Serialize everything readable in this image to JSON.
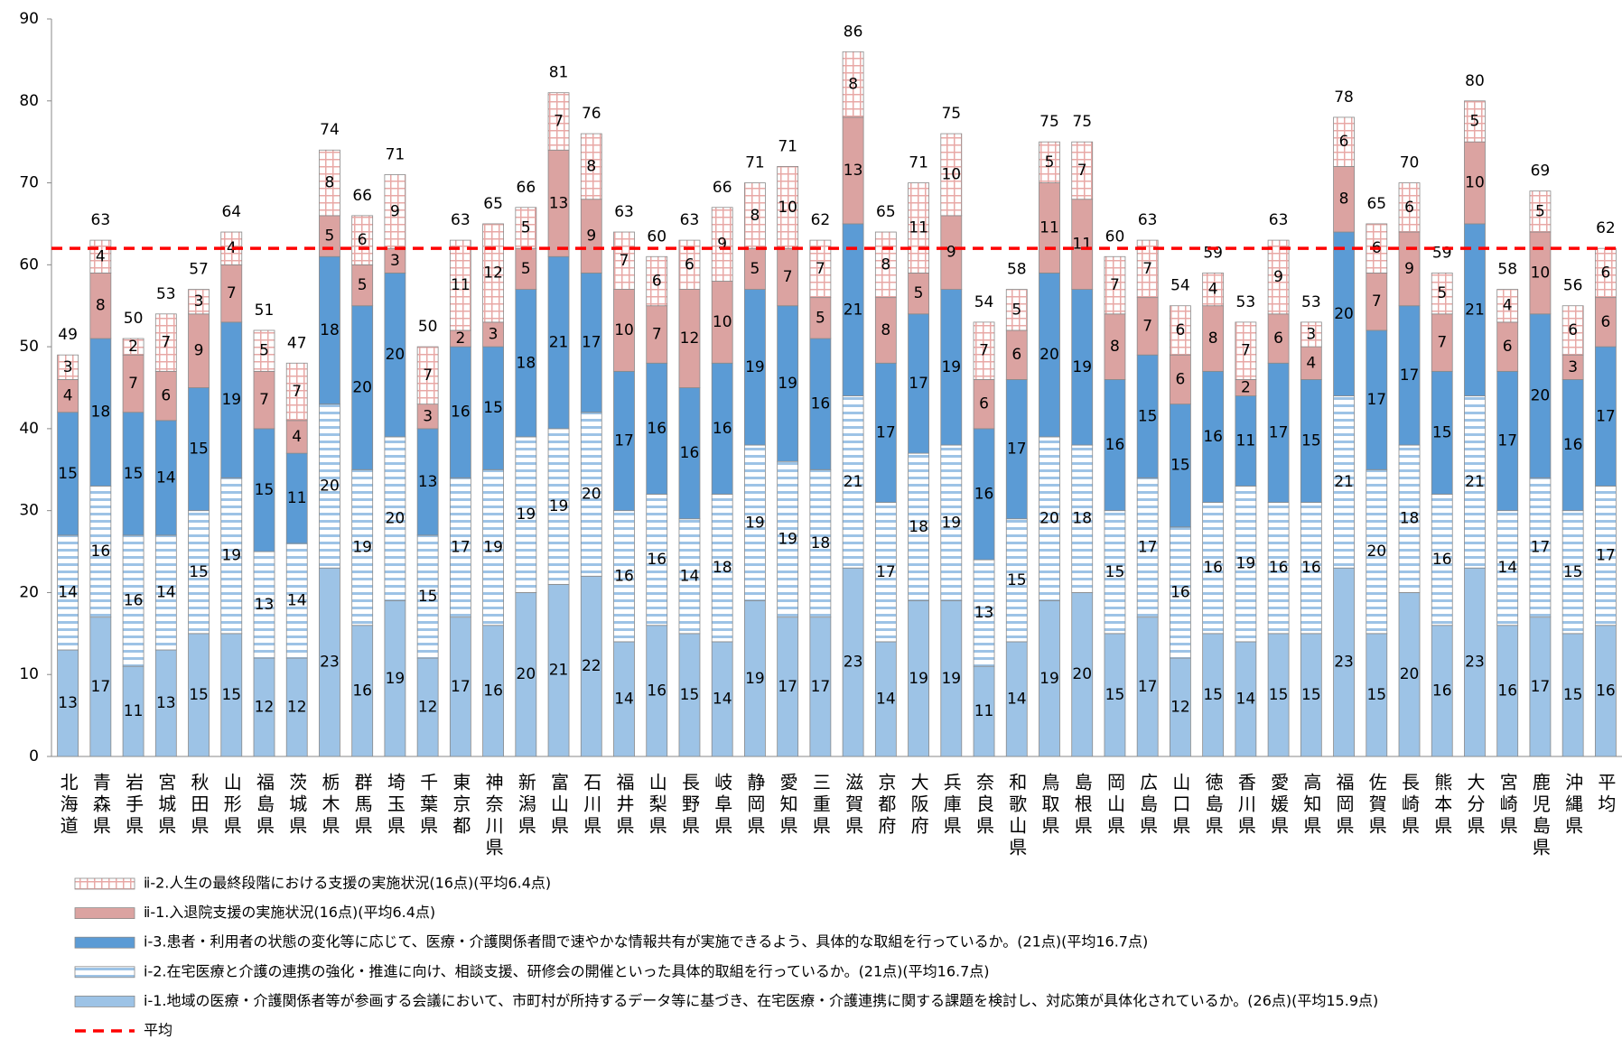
{
  "chart_data": {
    "type": "stacked_bar",
    "categories": [
      "北海道",
      "青森県",
      "岩手県",
      "宮城県",
      "秋田県",
      "山形県",
      "福島県",
      "茨城県",
      "栃木県",
      "群馬県",
      "埼玉県",
      "千葉県",
      "東京都",
      "神奈川県",
      "新潟県",
      "富山県",
      "石川県",
      "福井県",
      "山梨県",
      "長野県",
      "岐阜県",
      "静岡県",
      "愛知県",
      "三重県",
      "滋賀県",
      "京都府",
      "大阪府",
      "兵庫県",
      "奈良県",
      "和歌山県",
      "鳥取県",
      "島根県",
      "岡山県",
      "広島県",
      "山口県",
      "徳島県",
      "香川県",
      "愛媛県",
      "高知県",
      "福岡県",
      "佐賀県",
      "長崎県",
      "熊本県",
      "大分県",
      "宮崎県",
      "鹿児島県",
      "沖縄県",
      "平均"
    ],
    "series": [
      {
        "name": "ⅰ-1.地域の医療・介護関係者等が参画する会議において、市町村が所持するデータ等に基づき、在宅医療・介護連携に関する課題を検討し、対応策が具体化されているか。(26点)(平均15.9点)",
        "color": "#9dc3e6",
        "pattern": "solid",
        "values": [
          13,
          17,
          11,
          13,
          15,
          15,
          12,
          12,
          23,
          16,
          19,
          12,
          17,
          16,
          20,
          21,
          22,
          14,
          16,
          15,
          14,
          19,
          17,
          17,
          23,
          14,
          19,
          19,
          11,
          14,
          19,
          20,
          15,
          17,
          12,
          15,
          14,
          15,
          15,
          23,
          15,
          20,
          16,
          23,
          16,
          17,
          15,
          16
        ]
      },
      {
        "name": "ⅰ-2.在宅医療と介護の連携の強化・推進に向け、相談支援、研修会の開催といった具体的取組を行っているか。(21点)(平均16.7点)",
        "color": "#9dc3e6",
        "pattern": "hstripe",
        "values": [
          14,
          16,
          16,
          14,
          15,
          19,
          13,
          14,
          20,
          19,
          20,
          15,
          17,
          19,
          19,
          19,
          20,
          16,
          16,
          14,
          18,
          19,
          19,
          18,
          21,
          17,
          18,
          19,
          13,
          15,
          20,
          18,
          15,
          17,
          16,
          16,
          19,
          16,
          16,
          21,
          20,
          18,
          16,
          21,
          14,
          17,
          15,
          17
        ]
      },
      {
        "name": "ⅰ-3.患者・利用者の状態の変化等に応じて、医療・介護関係者間で速やかな情報共有が実施できるよう、具体的な取組を行っているか。(21点)(平均16.7点)",
        "color": "#5b9bd5",
        "pattern": "solid",
        "values": [
          15,
          18,
          15,
          14,
          15,
          19,
          15,
          11,
          18,
          20,
          20,
          13,
          16,
          15,
          18,
          21,
          17,
          17,
          16,
          16,
          16,
          19,
          19,
          16,
          21,
          17,
          17,
          19,
          16,
          17,
          20,
          19,
          16,
          15,
          15,
          16,
          11,
          17,
          15,
          20,
          17,
          17,
          15,
          21,
          17,
          20,
          16,
          17
        ]
      },
      {
        "name": "ⅱ-1.入退院支援の実施状況(16点)(平均6.4点)",
        "color": "#dba3a1",
        "pattern": "solid",
        "values": [
          4,
          8,
          7,
          6,
          9,
          7,
          7,
          4,
          5,
          5,
          3,
          3,
          2,
          3,
          5,
          13,
          9,
          10,
          7,
          12,
          10,
          5,
          7,
          5,
          13,
          8,
          5,
          9,
          6,
          6,
          11,
          11,
          8,
          7,
          6,
          8,
          2,
          6,
          4,
          8,
          7,
          9,
          7,
          10,
          6,
          10,
          3,
          6
        ]
      },
      {
        "name": "ⅱ-2.人生の最終段階における支援の実施状況(16点)(平均6.4点)",
        "color": "#e8a8a6",
        "pattern": "grid",
        "values": [
          3,
          4,
          2,
          7,
          3,
          4,
          5,
          7,
          8,
          6,
          9,
          7,
          11,
          12,
          5,
          7,
          8,
          7,
          6,
          6,
          9,
          8,
          10,
          7,
          8,
          8,
          11,
          10,
          7,
          5,
          5,
          7,
          7,
          7,
          6,
          4,
          7,
          9,
          3,
          6,
          6,
          6,
          5,
          5,
          4,
          5,
          6,
          6
        ]
      }
    ],
    "totals": [
      49,
      63,
      50,
      53,
      57,
      64,
      51,
      47,
      74,
      66,
      71,
      50,
      63,
      65,
      66,
      81,
      76,
      63,
      60,
      63,
      66,
      71,
      71,
      62,
      86,
      65,
      71,
      75,
      54,
      58,
      75,
      75,
      60,
      63,
      54,
      59,
      53,
      63,
      53,
      78,
      65,
      70,
      59,
      80,
      58,
      69,
      56,
      62
    ],
    "reference": {
      "name": "平均",
      "value": 62,
      "color": "#ff0000"
    },
    "ylim": [
      0,
      90
    ],
    "yticks": [
      0,
      10,
      20,
      30,
      40,
      50,
      60,
      70,
      80,
      90
    ],
    "grid": false
  }
}
